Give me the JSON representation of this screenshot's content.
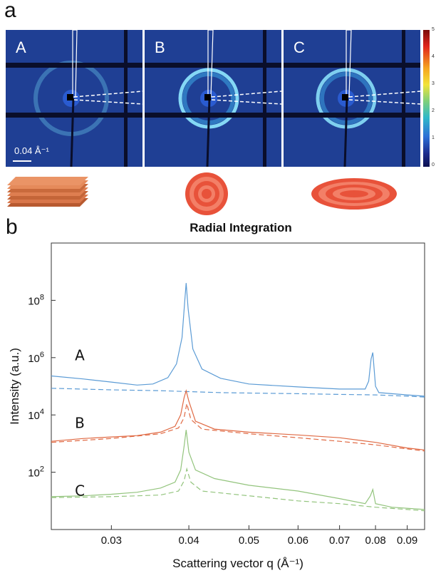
{
  "panel_a": {
    "letter": "a",
    "detectors": [
      {
        "label": "A",
        "ring_strength": 0.35
      },
      {
        "label": "B",
        "ring_strength": 0.9
      },
      {
        "label": "C",
        "ring_strength": 0.85
      }
    ],
    "scale_bar_text": "0.04 Å⁻¹",
    "colorbar_ticks": [
      "5",
      "4",
      "3",
      "2",
      "1",
      "0"
    ]
  },
  "panel_b": {
    "letter": "b"
  },
  "colors": {
    "A": "#5b9bd5",
    "B": "#e06a44",
    "C": "#93c47d",
    "orange": "#d9764a",
    "red": "#e8523a"
  },
  "chart_data": {
    "type": "line",
    "title": "Radial Integration",
    "xlabel": "Scattering vector q (Å⁻¹)",
    "ylabel": "Intensity (a.u.)",
    "x_scale": "log",
    "y_scale": "log",
    "xlim": [
      0.024,
      0.096
    ],
    "ylim": [
      1,
      10000000000
    ],
    "x_ticks": [
      {
        "value": 0.03,
        "label": "0.03"
      },
      {
        "value": 0.04,
        "label": "0.04"
      },
      {
        "value": 0.05,
        "label": "0.05"
      },
      {
        "value": 0.06,
        "label": "0.06"
      },
      {
        "value": 0.07,
        "label": "0.07"
      },
      {
        "value": 0.08,
        "label": "0.08"
      },
      {
        "value": 0.09,
        "label": "0.09"
      }
    ],
    "y_ticks": [
      {
        "value": 100,
        "base": "10",
        "exp": "2"
      },
      {
        "value": 10000,
        "base": "10",
        "exp": "4"
      },
      {
        "value": 1000000,
        "base": "10",
        "exp": "6"
      },
      {
        "value": 100000000,
        "base": "10",
        "exp": "8"
      }
    ],
    "curve_labels": [
      {
        "text": "A",
        "x": 0.0262,
        "y": 800000
      },
      {
        "text": "B",
        "x": 0.0262,
        "y": 3500
      },
      {
        "text": "C",
        "x": 0.0262,
        "y": 15
      }
    ],
    "series": [
      {
        "sample": "A",
        "style": "solid",
        "x": [
          0.024,
          0.027,
          0.03,
          0.033,
          0.035,
          0.037,
          0.0382,
          0.039,
          0.0394,
          0.0396,
          0.0399,
          0.0406,
          0.042,
          0.045,
          0.05,
          0.06,
          0.07,
          0.077,
          0.078,
          0.0787,
          0.0792,
          0.08,
          0.081,
          0.09,
          0.096
        ],
        "y": [
          230000,
          180000,
          140000,
          110000,
          120000,
          200000,
          600000,
          5000000,
          100000000,
          400000000,
          50000000,
          2000000,
          400000,
          190000,
          120000,
          95000,
          80000,
          80000,
          150000,
          900000,
          1500000,
          100000,
          60000,
          50000,
          45000
        ]
      },
      {
        "sample": "A",
        "style": "dashed",
        "x": [
          0.024,
          0.03,
          0.036,
          0.04,
          0.045,
          0.05,
          0.06,
          0.07,
          0.08,
          0.09,
          0.096
        ],
        "y": [
          85000,
          75000,
          70000,
          65000,
          60000,
          58000,
          55000,
          52000,
          50000,
          45000,
          42000
        ]
      },
      {
        "sample": "B",
        "style": "solid",
        "x": [
          0.024,
          0.027,
          0.03,
          0.033,
          0.036,
          0.038,
          0.0388,
          0.0393,
          0.0396,
          0.04,
          0.041,
          0.044,
          0.05,
          0.06,
          0.07,
          0.08,
          0.09,
          0.096
        ],
        "y": [
          1200,
          1500,
          1700,
          1900,
          2500,
          4000,
          10000,
          40000,
          70000,
          30000,
          6000,
          3200,
          2500,
          2000,
          1600,
          1100,
          700,
          600
        ]
      },
      {
        "sample": "B",
        "style": "dashed",
        "x": [
          0.024,
          0.03,
          0.036,
          0.0385,
          0.0393,
          0.0397,
          0.0403,
          0.042,
          0.05,
          0.06,
          0.07,
          0.08,
          0.09,
          0.096
        ],
        "y": [
          1100,
          1500,
          2200,
          3500,
          8000,
          25000,
          7000,
          3200,
          2200,
          1600,
          1200,
          900,
          650,
          550
        ]
      },
      {
        "sample": "C",
        "style": "solid",
        "x": [
          0.024,
          0.027,
          0.03,
          0.033,
          0.036,
          0.038,
          0.0388,
          0.0393,
          0.0396,
          0.04,
          0.041,
          0.044,
          0.05,
          0.06,
          0.07,
          0.077,
          0.0785,
          0.0792,
          0.08,
          0.085,
          0.096
        ],
        "y": [
          14,
          15,
          17,
          20,
          28,
          45,
          120,
          800,
          3000,
          500,
          120,
          60,
          35,
          22,
          12,
          8,
          15,
          25,
          8,
          6,
          5
        ]
      },
      {
        "sample": "C",
        "style": "dashed",
        "x": [
          0.024,
          0.03,
          0.036,
          0.0385,
          0.0393,
          0.0397,
          0.0403,
          0.042,
          0.05,
          0.06,
          0.07,
          0.08,
          0.09,
          0.096
        ],
        "y": [
          13,
          14,
          16,
          22,
          50,
          130,
          45,
          22,
          15,
          10,
          8,
          6,
          5,
          4.5
        ]
      }
    ]
  }
}
